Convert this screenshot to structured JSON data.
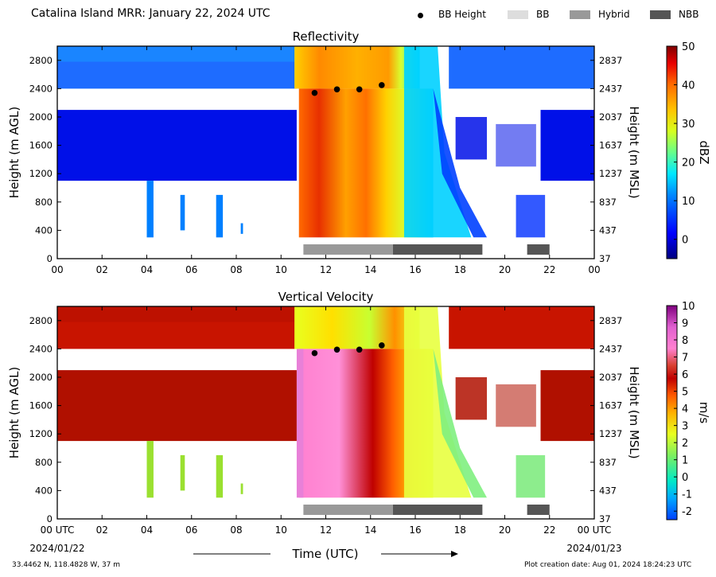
{
  "header": {
    "title": "Catalina Island MRR:  January 22, 2024 UTC",
    "legend": [
      {
        "label": "BB Height",
        "marker": "dot",
        "color": "#000000"
      },
      {
        "label": "BB",
        "marker": "box",
        "color": "#dddddd"
      },
      {
        "label": "Hybrid",
        "marker": "box",
        "color": "#999999"
      },
      {
        "label": "NBB",
        "marker": "box",
        "color": "#555555"
      }
    ]
  },
  "footer": {
    "location": "33.4462 N, 118.4828 W, 37 m",
    "created": "Plot creation date: Aug 01, 2024 18:24:23 UTC",
    "xlabel": "Time (UTC)",
    "start_label_time": "00 UTC",
    "start_label_date": "2024/01/22",
    "end_label_time": "00 UTC",
    "end_label_date": "2024/01/23"
  },
  "chart_data": [
    {
      "type": "heatmap",
      "title": "Reflectivity",
      "ylabel": "Height (m AGL)",
      "ylabel_right": "Height (m MSL)",
      "xlim": [
        0,
        24
      ],
      "ylim": [
        0,
        3000
      ],
      "x_ticks": [
        "00",
        "02",
        "04",
        "06",
        "08",
        "10",
        "12",
        "14",
        "16",
        "18",
        "20",
        "22",
        "00"
      ],
      "y_ticks_left": [
        "0",
        "400",
        "800",
        "1200",
        "1600",
        "2000",
        "2400",
        "2800"
      ],
      "y_ticks_right": [
        "37",
        "437",
        "837",
        "1237",
        "1637",
        "2037",
        "2437",
        "2837"
      ],
      "colorbar": {
        "label": "dBZ",
        "min": -5,
        "max": 50,
        "ticks": [
          "0",
          "10",
          "20",
          "30",
          "40",
          "50"
        ]
      },
      "bb_height": [
        {
          "x": 11.5,
          "y": 2340
        },
        {
          "x": 12.5,
          "y": 2390
        },
        {
          "x": 13.5,
          "y": 2390
        },
        {
          "x": 14.5,
          "y": 2450
        }
      ],
      "classification": [
        {
          "type": "Hybrid",
          "start": 11.0,
          "end": 15.0
        },
        {
          "type": "NBB",
          "start": 15.0,
          "end": 19.0
        },
        {
          "type": "NBB",
          "start": 21.0,
          "end": 22.0
        }
      ]
    },
    {
      "type": "heatmap",
      "title": "Vertical Velocity",
      "ylabel": "Height (m AGL)",
      "ylabel_right": "Height (m MSL)",
      "xlim": [
        0,
        24
      ],
      "ylim": [
        0,
        3000
      ],
      "x_ticks": [
        "00 UTC",
        "02",
        "04",
        "06",
        "08",
        "10",
        "12",
        "14",
        "16",
        "18",
        "20",
        "22",
        "00 UTC"
      ],
      "y_ticks_left": [
        "0",
        "400",
        "800",
        "1200",
        "1600",
        "2000",
        "2400",
        "2800"
      ],
      "y_ticks_right": [
        "37",
        "437",
        "837",
        "1237",
        "1637",
        "2037",
        "2437",
        "2837"
      ],
      "colorbar": {
        "label": "m/s",
        "min": -2.5,
        "max": 10,
        "ticks": [
          "-2",
          "-1",
          "0",
          "1",
          "2",
          "3",
          "4",
          "5",
          "6",
          "7",
          "8",
          "9",
          "10"
        ]
      },
      "bb_height": [
        {
          "x": 11.5,
          "y": 2340
        },
        {
          "x": 12.5,
          "y": 2390
        },
        {
          "x": 13.5,
          "y": 2390
        },
        {
          "x": 14.5,
          "y": 2450
        }
      ],
      "classification": [
        {
          "type": "Hybrid",
          "start": 11.0,
          "end": 15.0
        },
        {
          "type": "NBB",
          "start": 15.0,
          "end": 19.0
        },
        {
          "type": "NBB",
          "start": 21.0,
          "end": 22.0
        }
      ]
    }
  ],
  "colors": {
    "bb": "#dddddd",
    "hybrid": "#999999",
    "nbb": "#555555"
  }
}
